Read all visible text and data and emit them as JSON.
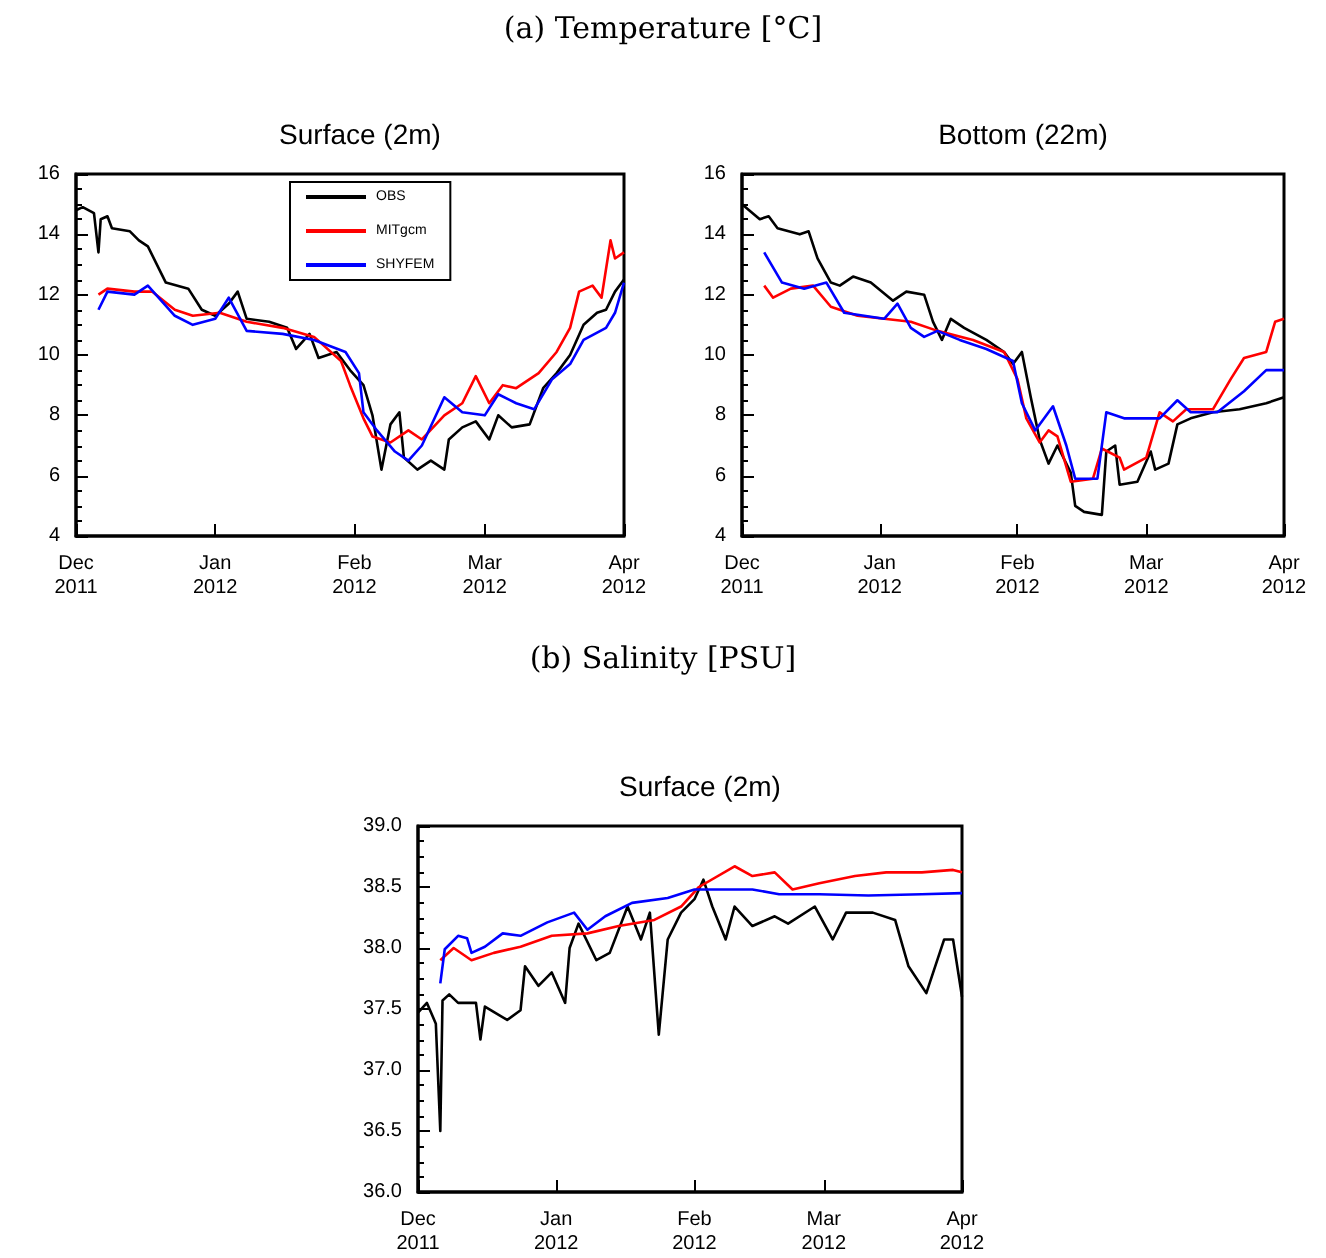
{
  "chart_data": [
    {
      "type": "line",
      "title": "Surface (2m)",
      "annotations": [
        "(a) Temperature [°C]"
      ],
      "legend": "top",
      "grid": false,
      "marker": "none",
      "line_style": "solid",
      "xlim": [
        "2011-12-01",
        "2012-04-01"
      ],
      "xticks": [
        {
          "value": "2011-12-01",
          "label": "Dec\n2011"
        },
        {
          "value": "2012-01-01",
          "label": "Jan\n2012"
        },
        {
          "value": "2012-02-01",
          "label": "Feb\n2012"
        },
        {
          "value": "2012-03-01",
          "label": "Mar\n2012"
        },
        {
          "value": "2012-04-01",
          "label": "Apr\n2012"
        }
      ],
      "ylim": [
        4,
        16
      ],
      "yticks": [
        4,
        6,
        8,
        10,
        12,
        14,
        16
      ],
      "series": [
        {
          "name": "OBS",
          "color": "#000000",
          "x": [
            "2011-12-01",
            "2011-12-02T12:00",
            "2011-12-05",
            "2011-12-06",
            "2011-12-06T12:00",
            "2011-12-08",
            "2011-12-09",
            "2011-12-13",
            "2011-12-15",
            "2011-12-17",
            "2011-12-20",
            "2011-12-21",
            "2011-12-26",
            "2011-12-29",
            "2012-01-01",
            "2012-01-04",
            "2012-01-06",
            "2012-01-08",
            "2012-01-13",
            "2012-01-17",
            "2012-01-19",
            "2012-01-22",
            "2012-01-24",
            "2012-01-28",
            "2012-01-31",
            "2012-02-03",
            "2012-02-05",
            "2012-02-07",
            "2012-02-09",
            "2012-02-11",
            "2012-02-12",
            "2012-02-15",
            "2012-02-18",
            "2012-02-21",
            "2012-02-22",
            "2012-02-25",
            "2012-02-28",
            "2012-03-02",
            "2012-03-04",
            "2012-03-07",
            "2012-03-11",
            "2012-03-14",
            "2012-03-17",
            "2012-03-20",
            "2012-03-23",
            "2012-03-26",
            "2012-03-28",
            "2012-03-30",
            "2012-04-01"
          ],
          "values": [
            14.8,
            14.9,
            14.7,
            13.4,
            14.5,
            14.6,
            14.2,
            14.1,
            13.8,
            13.6,
            12.7,
            12.4,
            12.2,
            11.5,
            11.3,
            11.7,
            12.1,
            11.2,
            11.1,
            10.9,
            10.2,
            10.7,
            9.9,
            10.1,
            9.5,
            9.0,
            8.0,
            6.2,
            7.7,
            8.1,
            6.6,
            6.2,
            6.5,
            6.2,
            7.2,
            7.6,
            7.8,
            7.2,
            8.0,
            7.6,
            7.7,
            8.9,
            9.4,
            10.0,
            11.0,
            11.4,
            11.5,
            12.1,
            12.5
          ]
        },
        {
          "name": "MITgcm",
          "color": "#ff0000",
          "x": [
            "2011-12-06",
            "2011-12-08",
            "2011-12-14",
            "2011-12-18",
            "2011-12-23",
            "2011-12-27",
            "2012-01-02",
            "2012-01-08",
            "2012-01-16",
            "2012-01-23",
            "2012-01-29",
            "2012-01-31",
            "2012-02-03",
            "2012-02-05",
            "2012-02-09",
            "2012-02-13",
            "2012-02-16",
            "2012-02-21",
            "2012-02-25",
            "2012-02-28",
            "2012-03-02",
            "2012-03-05",
            "2012-03-08",
            "2012-03-13",
            "2012-03-17",
            "2012-03-20",
            "2012-03-22",
            "2012-03-25",
            "2012-03-27",
            "2012-03-29",
            "2012-03-30",
            "2012-04-01"
          ],
          "values": [
            12.0,
            12.2,
            12.1,
            12.1,
            11.5,
            11.3,
            11.4,
            11.1,
            10.9,
            10.6,
            9.8,
            9.0,
            7.9,
            7.3,
            7.1,
            7.5,
            7.2,
            8.0,
            8.4,
            9.3,
            8.4,
            9.0,
            8.9,
            9.4,
            10.1,
            10.9,
            12.1,
            12.3,
            11.9,
            13.8,
            13.2,
            13.4
          ]
        },
        {
          "name": "SHYFEM",
          "color": "#0000ff",
          "x": [
            "2011-12-06",
            "2011-12-08",
            "2011-12-14",
            "2011-12-17",
            "2011-12-23",
            "2011-12-27",
            "2012-01-01",
            "2012-01-04",
            "2012-01-08",
            "2012-01-16",
            "2012-01-23",
            "2012-01-30",
            "2012-02-02",
            "2012-02-03",
            "2012-02-06",
            "2012-02-10",
            "2012-02-13",
            "2012-02-16",
            "2012-02-21",
            "2012-02-25",
            "2012-03-01",
            "2012-03-04",
            "2012-03-08",
            "2012-03-12",
            "2012-03-16",
            "2012-03-20",
            "2012-03-23",
            "2012-03-28",
            "2012-03-30",
            "2012-04-01"
          ],
          "values": [
            11.5,
            12.1,
            12.0,
            12.3,
            11.3,
            11.0,
            11.2,
            11.9,
            10.8,
            10.7,
            10.5,
            10.1,
            9.4,
            8.1,
            7.5,
            6.8,
            6.5,
            7.0,
            8.6,
            8.1,
            8.0,
            8.7,
            8.4,
            8.2,
            9.2,
            9.7,
            10.5,
            10.9,
            11.4,
            12.4
          ]
        }
      ]
    },
    {
      "type": "line",
      "title": "Bottom (22m)",
      "legend": false,
      "grid": false,
      "marker": "none",
      "line_style": "solid",
      "xlim": [
        "2011-12-01",
        "2012-04-01"
      ],
      "xticks": [
        {
          "value": "2011-12-01",
          "label": "Dec\n2011"
        },
        {
          "value": "2012-01-01",
          "label": "Jan\n2012"
        },
        {
          "value": "2012-02-01",
          "label": "Feb\n2012"
        },
        {
          "value": "2012-03-01",
          "label": "Mar\n2012"
        },
        {
          "value": "2012-04-01",
          "label": "Apr\n2012"
        }
      ],
      "ylim": [
        4,
        16
      ],
      "yticks": [
        4,
        6,
        8,
        10,
        12,
        14,
        16
      ],
      "series": [
        {
          "color": "#000000",
          "x": [
            "2011-12-01",
            "2011-12-05",
            "2011-12-07",
            "2011-12-09",
            "2011-12-14",
            "2011-12-16",
            "2011-12-18",
            "2011-12-21",
            "2011-12-23",
            "2011-12-26",
            "2011-12-30",
            "2012-01-04",
            "2012-01-07",
            "2012-01-11",
            "2012-01-13",
            "2012-01-15",
            "2012-01-17",
            "2012-01-20",
            "2012-01-25",
            "2012-01-29",
            "2012-01-31",
            "2012-02-02",
            "2012-02-04",
            "2012-02-06",
            "2012-02-08",
            "2012-02-10",
            "2012-02-13",
            "2012-02-14",
            "2012-02-16",
            "2012-02-20",
            "2012-02-21",
            "2012-02-23",
            "2012-02-24",
            "2012-02-28",
            "2012-03-02",
            "2012-03-03",
            "2012-03-06",
            "2012-03-08",
            "2012-03-11",
            "2012-03-16",
            "2012-03-22",
            "2012-03-28",
            "2012-04-01"
          ],
          "values": [
            15.0,
            14.5,
            14.6,
            14.2,
            14.0,
            14.1,
            13.2,
            12.4,
            12.3,
            12.6,
            12.4,
            11.8,
            12.1,
            12.0,
            11.1,
            10.5,
            11.2,
            10.9,
            10.5,
            10.1,
            9.7,
            10.1,
            8.6,
            7.2,
            6.4,
            7.0,
            6.1,
            5.0,
            4.8,
            4.7,
            6.8,
            7.0,
            5.7,
            5.8,
            6.8,
            6.2,
            6.4,
            7.7,
            7.9,
            8.1,
            8.2,
            8.4,
            8.6
          ]
        },
        {
          "color": "#ff0000",
          "x": [
            "2011-12-06",
            "2011-12-08",
            "2011-12-12",
            "2011-12-17",
            "2011-12-21",
            "2011-12-27",
            "2012-01-02",
            "2012-01-08",
            "2012-01-14",
            "2012-01-22",
            "2012-01-29",
            "2012-02-01",
            "2012-02-03",
            "2012-02-06",
            "2012-02-08",
            "2012-02-10",
            "2012-02-13",
            "2012-02-18",
            "2012-02-20",
            "2012-02-24",
            "2012-02-25",
            "2012-03-01",
            "2012-03-04",
            "2012-03-07",
            "2012-03-10",
            "2012-03-16",
            "2012-03-20",
            "2012-03-23",
            "2012-03-28",
            "2012-03-30",
            "2012-04-01"
          ],
          "values": [
            12.3,
            11.9,
            12.2,
            12.3,
            11.6,
            11.3,
            11.2,
            11.1,
            10.8,
            10.5,
            10.1,
            9.2,
            7.9,
            7.1,
            7.5,
            7.3,
            5.8,
            5.9,
            6.9,
            6.6,
            6.2,
            6.6,
            8.1,
            7.8,
            8.2,
            8.2,
            9.2,
            9.9,
            10.1,
            11.1,
            11.2
          ]
        },
        {
          "color": "#0000ff",
          "x": [
            "2011-12-06",
            "2011-12-10",
            "2011-12-15",
            "2011-12-20",
            "2011-12-24",
            "2012-01-02",
            "2012-01-05",
            "2012-01-08",
            "2012-01-11",
            "2012-01-14",
            "2012-01-19",
            "2012-01-25",
            "2012-01-31",
            "2012-02-02",
            "2012-02-05",
            "2012-02-09",
            "2012-02-12",
            "2012-02-14",
            "2012-02-19",
            "2012-02-21",
            "2012-02-25",
            "2012-03-04",
            "2012-03-08",
            "2012-03-11",
            "2012-03-17",
            "2012-03-23",
            "2012-03-28",
            "2012-04-01"
          ],
          "values": [
            13.4,
            12.4,
            12.2,
            12.4,
            11.4,
            11.2,
            11.7,
            10.9,
            10.6,
            10.8,
            10.5,
            10.2,
            9.8,
            8.4,
            7.5,
            8.3,
            7.0,
            5.9,
            5.9,
            8.1,
            7.9,
            7.9,
            8.5,
            8.1,
            8.1,
            8.8,
            9.5,
            9.5
          ]
        }
      ]
    },
    {
      "type": "line",
      "title": "Surface (2m)",
      "annotations": [
        "(b) Salinity [PSU]"
      ],
      "legend": false,
      "grid": false,
      "marker": "none",
      "line_style": "solid",
      "xlim": [
        "2011-12-01",
        "2012-04-01"
      ],
      "xticks": [
        {
          "value": "2011-12-01",
          "label": "Dec\n2011"
        },
        {
          "value": "2012-01-01",
          "label": "Jan\n2012"
        },
        {
          "value": "2012-02-01",
          "label": "Feb\n2012"
        },
        {
          "value": "2012-03-01",
          "label": "Mar\n2012"
        },
        {
          "value": "2012-04-01",
          "label": "Apr\n2012"
        }
      ],
      "ylim": [
        36,
        39
      ],
      "yticks": [
        {
          "value": 36,
          "label": "36.0"
        },
        36.5,
        {
          "value": 37,
          "label": "37.0"
        },
        37.5,
        {
          "value": 38,
          "label": "38.0"
        },
        38.5,
        {
          "value": 39,
          "label": "39.0"
        }
      ],
      "series": [
        {
          "color": "#000000",
          "x": [
            "2011-12-01",
            "2011-12-03",
            "2011-12-05",
            "2011-12-06",
            "2011-12-06T12:00",
            "2011-12-08",
            "2011-12-10",
            "2011-12-14",
            "2011-12-15",
            "2011-12-16",
            "2011-12-21",
            "2011-12-24",
            "2011-12-25",
            "2011-12-28",
            "2011-12-31",
            "2012-01-03",
            "2012-01-04",
            "2012-01-06",
            "2012-01-10",
            "2012-01-13",
            "2012-01-17",
            "2012-01-20",
            "2012-01-22",
            "2012-01-24",
            "2012-01-26",
            "2012-01-29",
            "2012-02-01",
            "2012-02-03",
            "2012-02-05",
            "2012-02-08",
            "2012-02-10",
            "2012-02-14",
            "2012-02-19",
            "2012-02-22",
            "2012-02-28",
            "2012-03-03",
            "2012-03-06",
            "2012-03-12",
            "2012-03-17",
            "2012-03-20",
            "2012-03-24",
            "2012-03-28",
            "2012-03-30",
            "2012-04-01"
          ],
          "values": [
            37.47,
            37.55,
            37.38,
            36.5,
            37.57,
            37.62,
            37.55,
            37.55,
            37.25,
            37.52,
            37.41,
            37.49,
            37.85,
            37.69,
            37.8,
            37.55,
            38.0,
            38.2,
            37.9,
            37.96,
            38.34,
            38.07,
            38.29,
            37.29,
            38.07,
            38.29,
            38.4,
            38.56,
            38.34,
            38.07,
            38.34,
            38.18,
            38.26,
            38.2,
            38.34,
            38.07,
            38.29,
            38.29,
            38.23,
            37.85,
            37.63,
            38.07,
            38.07,
            37.6
          ]
        },
        {
          "color": "#ff0000",
          "x": [
            "2011-12-06",
            "2011-12-09",
            "2011-12-13",
            "2011-12-18",
            "2011-12-24",
            "2011-12-31",
            "2012-01-08",
            "2012-01-15",
            "2012-01-23",
            "2012-01-29",
            "2012-02-02",
            "2012-02-10",
            "2012-02-14",
            "2012-02-19",
            "2012-02-23",
            "2012-02-29",
            "2012-03-08",
            "2012-03-15",
            "2012-03-23",
            "2012-03-30",
            "2012-04-01"
          ],
          "values": [
            37.9,
            38.0,
            37.9,
            37.96,
            38.01,
            38.1,
            38.12,
            38.18,
            38.23,
            38.34,
            38.5,
            38.67,
            38.59,
            38.62,
            38.48,
            38.53,
            38.59,
            38.62,
            38.62,
            38.64,
            38.62
          ]
        },
        {
          "color": "#0000ff",
          "x": [
            "2011-12-06",
            "2011-12-07",
            "2011-12-10",
            "2011-12-12",
            "2011-12-13",
            "2011-12-16",
            "2011-12-20",
            "2011-12-24",
            "2011-12-30",
            "2012-01-05",
            "2012-01-08",
            "2012-01-12",
            "2012-01-18",
            "2012-01-26",
            "2012-02-01",
            "2012-02-07",
            "2012-02-14",
            "2012-02-20",
            "2012-02-29",
            "2012-03-11",
            "2012-03-23",
            "2012-04-01"
          ],
          "values": [
            37.71,
            37.99,
            38.1,
            38.08,
            37.96,
            38.01,
            38.12,
            38.1,
            38.21,
            38.29,
            38.15,
            38.26,
            38.37,
            38.41,
            38.48,
            38.48,
            38.48,
            38.44,
            38.44,
            38.43,
            38.44,
            38.45
          ]
        }
      ]
    }
  ]
}
